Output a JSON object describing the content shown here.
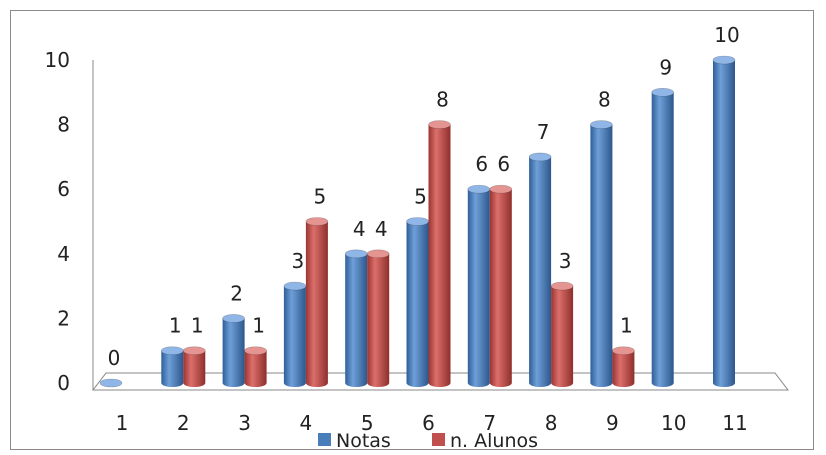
{
  "chart_data": {
    "type": "bar",
    "style": "3d-cylinder",
    "categories": [
      "1",
      "2",
      "3",
      "4",
      "5",
      "6",
      "7",
      "8",
      "9",
      "10",
      "11"
    ],
    "series": [
      {
        "name": "Notas",
        "color": "#4a7ebb",
        "values": [
          0,
          1,
          2,
          3,
          4,
          5,
          6,
          7,
          8,
          9,
          10
        ],
        "labels": [
          "0",
          "1",
          "2",
          "3",
          "4",
          "5",
          "6",
          "7",
          "8",
          "9",
          "10"
        ]
      },
      {
        "name": "n. Alunos",
        "color": "#c0504d",
        "values": [
          null,
          1,
          1,
          5,
          4,
          8,
          6,
          3,
          1,
          null,
          null
        ],
        "labels": [
          "",
          "1",
          "1",
          "5",
          "4",
          "8",
          "6",
          "3",
          "1",
          "",
          ""
        ]
      }
    ],
    "yticks": [
      "0",
      "2",
      "4",
      "6",
      "8",
      "10"
    ],
    "ylim": [
      0,
      10
    ],
    "grid": false,
    "legend_position": "bottom",
    "title": "",
    "xlabel": "",
    "ylabel": ""
  }
}
